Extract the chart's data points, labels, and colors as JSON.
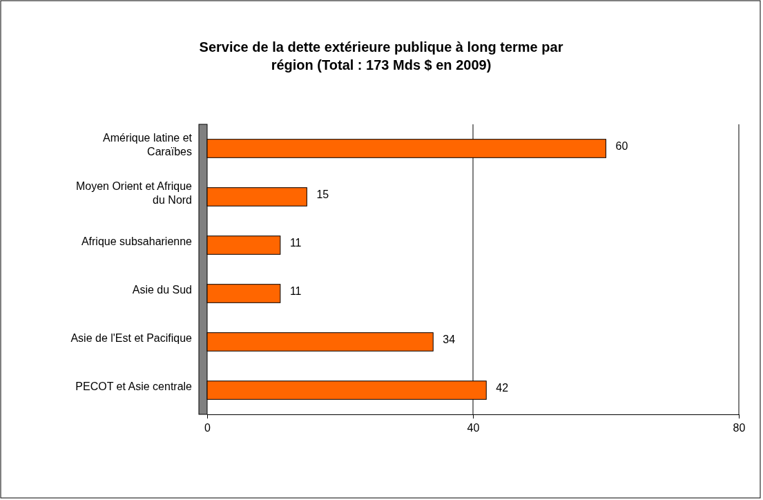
{
  "chart_data": {
    "type": "bar",
    "orientation": "horizontal",
    "title": "Service de la dette extérieure publique à long terme par région  (Total : 173 Mds $ en 2009)",
    "categories": [
      "Amérique latine et Caraïbes",
      "Moyen Orient et Afrique du Nord",
      "Afrique subsaharienne",
      "Asie du Sud",
      "Asie de l'Est et Pacifique",
      "PECOT et Asie centrale"
    ],
    "values": [
      60,
      15,
      11,
      11,
      34,
      42
    ],
    "color": "#ff6600",
    "data_labels": true,
    "xlim": [
      0,
      80
    ],
    "xticks": [
      0,
      40,
      80
    ],
    "grid": "x"
  }
}
